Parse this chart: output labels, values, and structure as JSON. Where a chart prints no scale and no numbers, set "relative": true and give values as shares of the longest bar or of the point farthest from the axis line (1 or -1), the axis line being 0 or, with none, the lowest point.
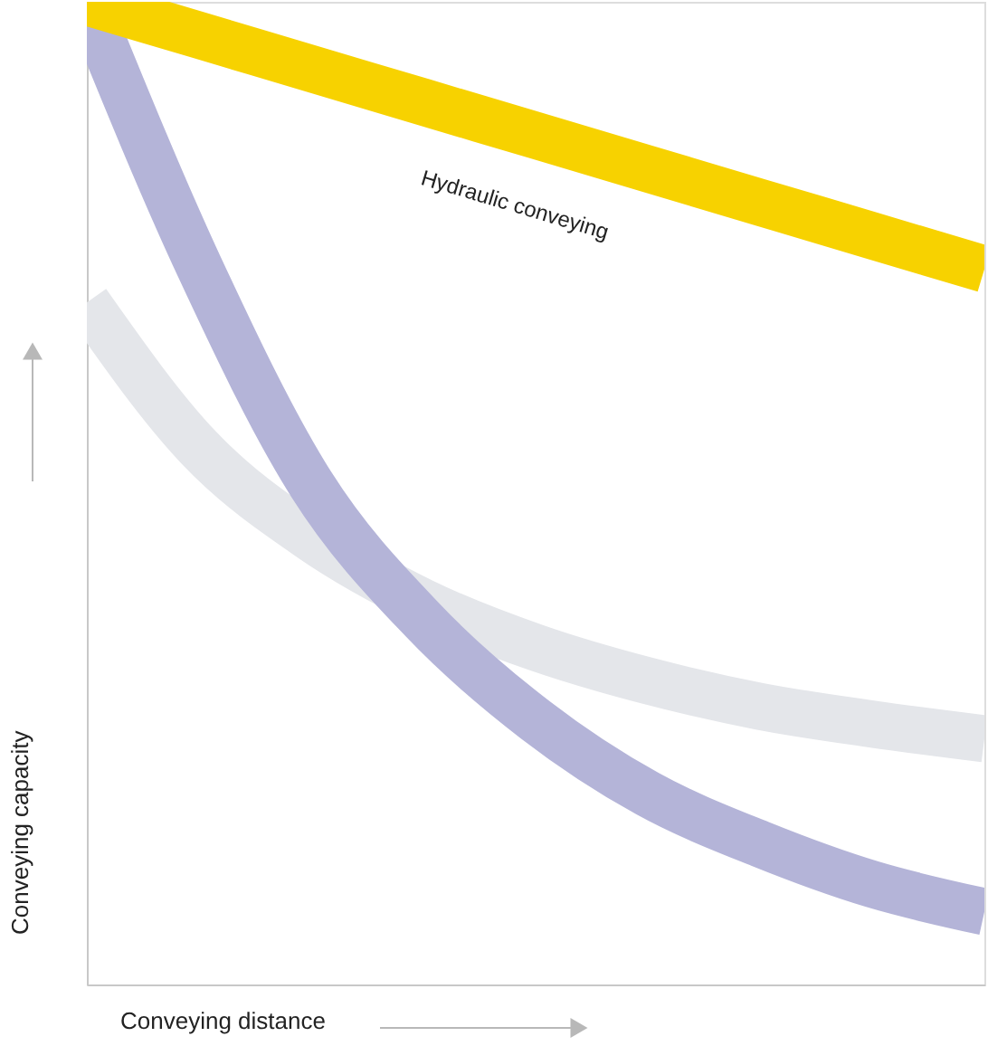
{
  "chart_data": {
    "type": "line",
    "relative": true,
    "xlabel": "Conveying distance",
    "ylabel": "Conveying capacity",
    "categories": [
      null,
      null,
      null,
      null,
      null,
      null,
      null,
      null,
      null
    ],
    "series": [
      {
        "color": "#e4e6ea",
        "values": [
          0.694,
          0.546,
          0.454,
          0.389,
          0.343,
          0.309,
          0.283,
          0.265,
          0.25
        ]
      },
      {
        "color": "#b4b4d8",
        "values": [
          1.0,
          0.731,
          0.509,
          0.37,
          0.269,
          0.194,
          0.143,
          0.102,
          0.074
        ]
      },
      {
        "name": "Hydraulic conveying",
        "color": "#f7d200",
        "values": [
          1.0,
          0.966,
          0.932,
          0.898,
          0.864,
          0.83,
          0.796,
          0.762,
          0.728
        ]
      }
    ]
  }
}
